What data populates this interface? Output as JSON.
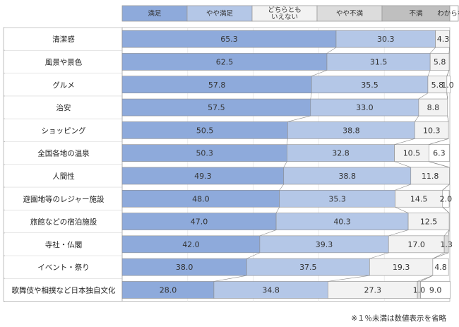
{
  "chart_data": {
    "type": "bar",
    "orientation": "horizontal",
    "stacked": true,
    "xlim": [
      0,
      100
    ],
    "legend_position": "top",
    "categories": [
      "清潔感",
      "風景や景色",
      "グルメ",
      "治安",
      "ショッピング",
      "全国各地の温泉",
      "人間性",
      "遊園地等のレジャー施設",
      "旅館などの宿泊施設",
      "寺社・仏閣",
      "イベント・祭り",
      "歌舞伎や相撲など日本独自文化"
    ],
    "series": [
      {
        "name": "満足",
        "color": "#8eaadb",
        "values": [
          65.3,
          62.5,
          57.8,
          57.5,
          50.5,
          50.3,
          49.3,
          48.0,
          47.0,
          42.0,
          38.0,
          28.0
        ]
      },
      {
        "name": "やや満足",
        "color": "#b4c7e7",
        "values": [
          30.3,
          31.5,
          35.5,
          33.0,
          38.8,
          32.8,
          38.8,
          35.3,
          40.3,
          39.3,
          37.5,
          34.8
        ]
      },
      {
        "name": "どちらとも\nいえない",
        "color": "#f2f2f2",
        "values": [
          4.3,
          5.8,
          5.8,
          8.8,
          10.3,
          10.5,
          11.8,
          14.5,
          12.5,
          17.0,
          19.3,
          27.3
        ]
      },
      {
        "name": "やや不満",
        "color": "#dcdcdc",
        "values": [
          0,
          0,
          0,
          0,
          0,
          0,
          0,
          0,
          0,
          1.3,
          0,
          1.0
        ]
      },
      {
        "name": "不満",
        "color": "#bfbfbf",
        "values": [
          0,
          0,
          0,
          0,
          0,
          0,
          0,
          0,
          0,
          0,
          0,
          0
        ]
      },
      {
        "name": "わからない",
        "color": "#ffffff",
        "values": [
          0,
          0,
          1.0,
          0,
          0,
          6.3,
          0,
          2.0,
          0,
          0,
          4.8,
          9.0
        ]
      }
    ],
    "labels": [
      [
        "65.3",
        "30.3",
        "4.3",
        "",
        "",
        ""
      ],
      [
        "62.5",
        "31.5",
        "5.8",
        "",
        "",
        ""
      ],
      [
        "57.8",
        "35.5",
        "5.8",
        "",
        "",
        "1.0"
      ],
      [
        "57.5",
        "33.0",
        "8.8",
        "",
        "",
        ""
      ],
      [
        "50.5",
        "38.8",
        "10.3",
        "",
        "",
        ""
      ],
      [
        "50.3",
        "32.8",
        "10.5",
        "",
        "",
        "6.3"
      ],
      [
        "49.3",
        "38.8",
        "11.8",
        "",
        "",
        ""
      ],
      [
        "48.0",
        "35.3",
        "14.5",
        "",
        "",
        "2.0"
      ],
      [
        "47.0",
        "40.3",
        "12.5",
        "",
        "",
        ""
      ],
      [
        "42.0",
        "39.3",
        "17.0",
        "1.3",
        "",
        ""
      ],
      [
        "38.0",
        "37.5",
        "19.3",
        "",
        "",
        "4.8"
      ],
      [
        "28.0",
        "34.8",
        "27.3",
        "1.0",
        "",
        "9.0"
      ]
    ],
    "note": "※１％未満は数値表示を省略"
  }
}
